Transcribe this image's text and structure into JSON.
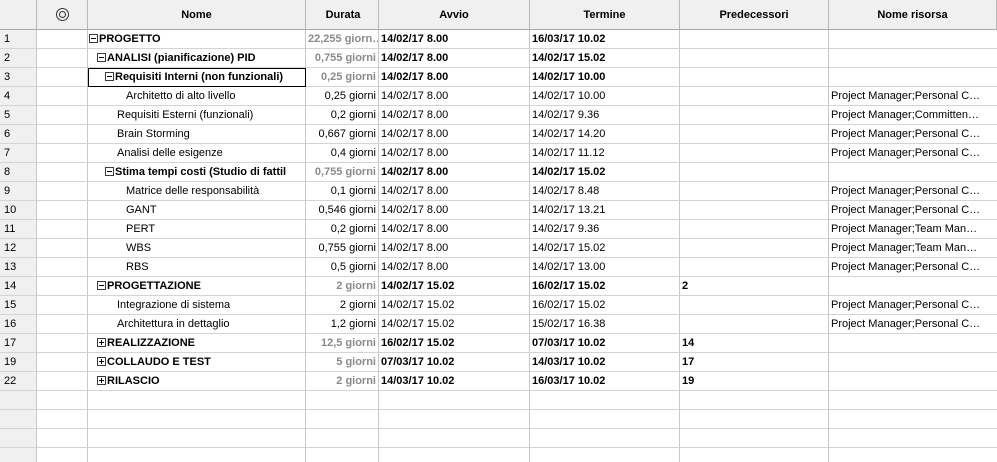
{
  "columns": {
    "indicator_icon": "info-icon",
    "name": "Nome",
    "duration": "Durata",
    "start": "Avvio",
    "finish": "Termine",
    "predecessors": "Predecessori",
    "resources": "Nome risorsa"
  },
  "rows": [
    {
      "id": "1",
      "name": "PROGETTO",
      "duration": "22,255 giorn…",
      "start": "14/02/17 8.00",
      "finish": "16/03/17 10.02",
      "pred": "",
      "res": ""
    },
    {
      "id": "2",
      "name": "ANALISI (pianificazione) PID",
      "duration": "0,755 giorni",
      "start": "14/02/17 8.00",
      "finish": "14/02/17 15.02",
      "pred": "",
      "res": ""
    },
    {
      "id": "3",
      "name": "Requisiti Interni (non funzionali)",
      "duration": "0,25 giorni",
      "start": "14/02/17 8.00",
      "finish": "14/02/17 10.00",
      "pred": "",
      "res": ""
    },
    {
      "id": "4",
      "name": "Architetto di alto livello",
      "duration": "0,25 giorni",
      "start": "14/02/17 8.00",
      "finish": "14/02/17 10.00",
      "pred": "",
      "res": "Project Manager;Personal C…"
    },
    {
      "id": "5",
      "name": "Requisiti Esterni (funzionali)",
      "duration": "0,2 giorni",
      "start": "14/02/17 8.00",
      "finish": "14/02/17 9.36",
      "pred": "",
      "res": "Project Manager;Committen…"
    },
    {
      "id": "6",
      "name": "Brain Storming",
      "duration": "0,667 giorni",
      "start": "14/02/17 8.00",
      "finish": "14/02/17 14.20",
      "pred": "",
      "res": "Project Manager;Personal C…"
    },
    {
      "id": "7",
      "name": "Analisi delle esigenze",
      "duration": "0,4 giorni",
      "start": "14/02/17 8.00",
      "finish": "14/02/17 11.12",
      "pred": "",
      "res": "Project Manager;Personal C…"
    },
    {
      "id": "8",
      "name": "Stima tempi costi (Studio di fattil",
      "duration": "0,755 giorni",
      "start": "14/02/17 8.00",
      "finish": "14/02/17 15.02",
      "pred": "",
      "res": ""
    },
    {
      "id": "9",
      "name": "Matrice delle responsabilità",
      "duration": "0,1 giorni",
      "start": "14/02/17 8.00",
      "finish": "14/02/17 8.48",
      "pred": "",
      "res": "Project Manager;Personal C…"
    },
    {
      "id": "10",
      "name": "GANT",
      "duration": "0,546 giorni",
      "start": "14/02/17 8.00",
      "finish": "14/02/17 13.21",
      "pred": "",
      "res": "Project Manager;Personal C…"
    },
    {
      "id": "11",
      "name": "PERT",
      "duration": "0,2 giorni",
      "start": "14/02/17 8.00",
      "finish": "14/02/17 9.36",
      "pred": "",
      "res": "Project Manager;Team Man…"
    },
    {
      "id": "12",
      "name": "WBS",
      "duration": "0,755 giorni",
      "start": "14/02/17 8.00",
      "finish": "14/02/17 15.02",
      "pred": "",
      "res": "Project Manager;Team Man…"
    },
    {
      "id": "13",
      "name": "RBS",
      "duration": "0,5 giorni",
      "start": "14/02/17 8.00",
      "finish": "14/02/17 13.00",
      "pred": "",
      "res": "Project Manager;Personal C…"
    },
    {
      "id": "14",
      "name": "PROGETTAZIONE",
      "duration": "2 giorni",
      "start": "14/02/17 15.02",
      "finish": "16/02/17 15.02",
      "pred": "2",
      "res": ""
    },
    {
      "id": "15",
      "name": "Integrazione di sistema",
      "duration": "2 giorni",
      "start": "14/02/17 15.02",
      "finish": "16/02/17 15.02",
      "pred": "",
      "res": "Project Manager;Personal C…"
    },
    {
      "id": "16",
      "name": "Architettura in dettaglio",
      "duration": "1,2 giorni",
      "start": "14/02/17 15.02",
      "finish": "15/02/17 16.38",
      "pred": "",
      "res": "Project Manager;Personal C…"
    },
    {
      "id": "17",
      "name": "REALIZZAZIONE",
      "duration": "12,5 giorni",
      "start": "16/02/17 15.02",
      "finish": "07/03/17 10.02",
      "pred": "14",
      "res": ""
    },
    {
      "id": "19",
      "name": "COLLAUDO E TEST",
      "duration": "5 giorni",
      "start": "07/03/17 10.02",
      "finish": "14/03/17 10.02",
      "pred": "17",
      "res": ""
    },
    {
      "id": "22",
      "name": "RILASCIO",
      "duration": "2 giorni",
      "start": "14/03/17 10.02",
      "finish": "16/03/17 10.02",
      "pred": "19",
      "res": ""
    }
  ]
}
